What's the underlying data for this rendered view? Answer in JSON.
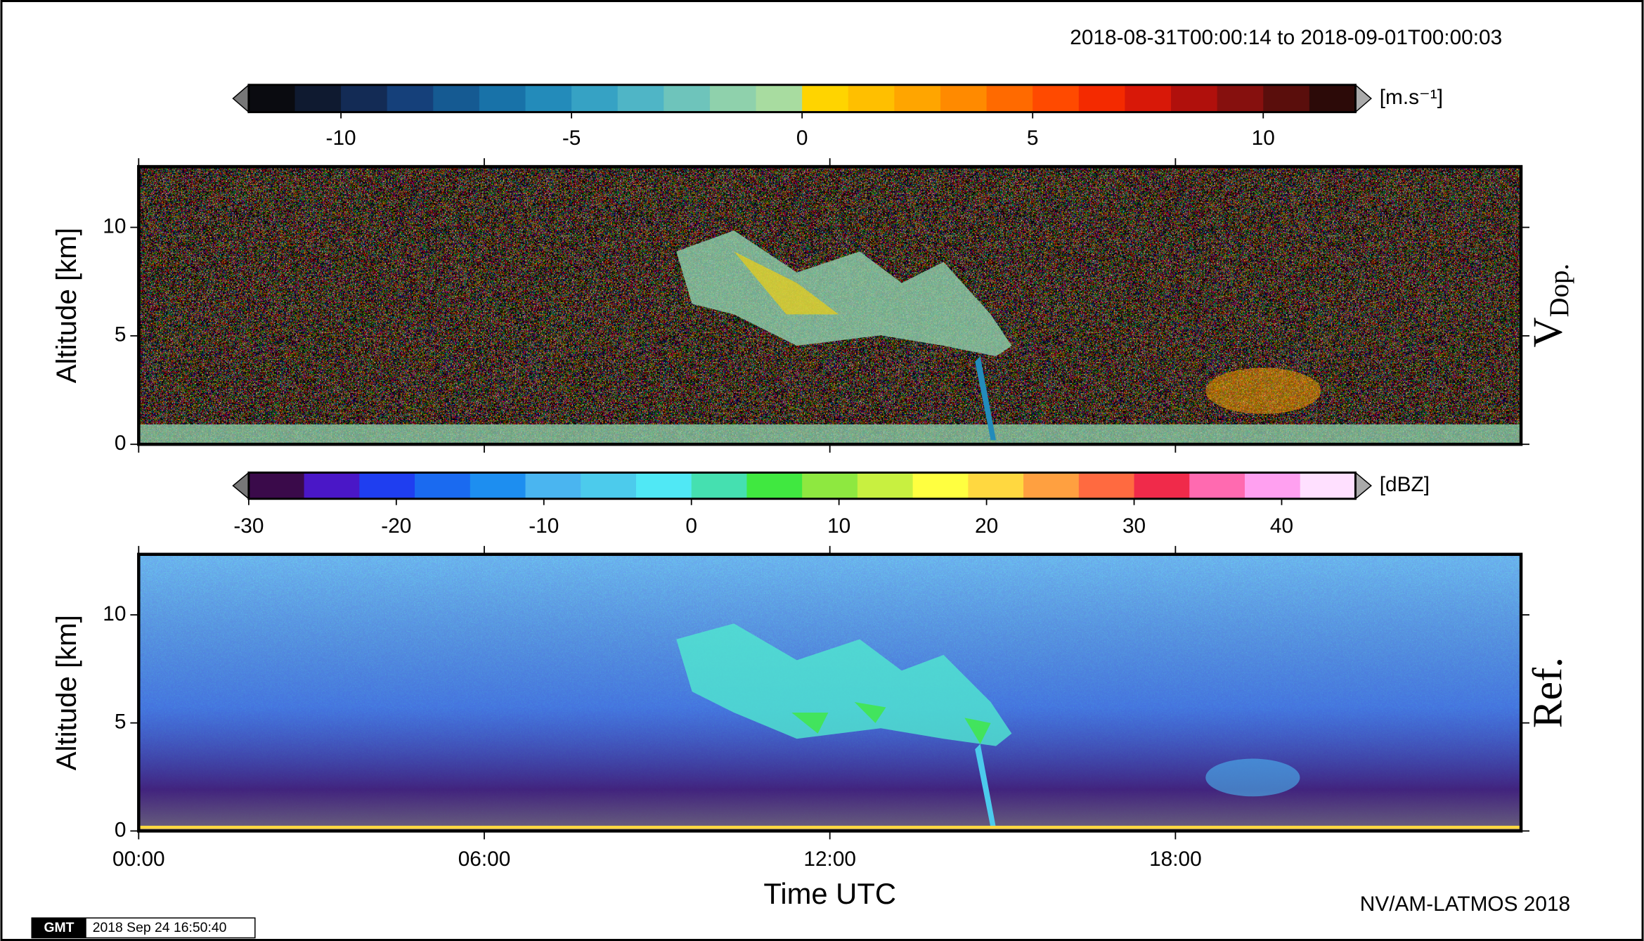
{
  "header": {
    "time_range": "2018-08-31T00:00:14 to 2018-09-01T00:00:03"
  },
  "chart_data": [
    {
      "type": "heatmap",
      "ylabel": "Altitude [km]",
      "side_label": "V",
      "side_label_sub": "Dop.",
      "ylim": [
        0,
        12.8
      ],
      "yticks": [
        0,
        5,
        10
      ],
      "xlim": [
        0,
        24
      ],
      "xticks": [
        {
          "value": 0,
          "label": "00:00"
        },
        {
          "value": 6,
          "label": "06:00"
        },
        {
          "value": 12,
          "label": "12:00"
        },
        {
          "value": 18,
          "label": "18:00"
        }
      ],
      "colorbar_label": "[m.s⁻¹]",
      "clim": [
        -12,
        12
      ],
      "cticks": [
        -10,
        -5,
        0,
        5,
        10
      ],
      "colors": [
        "#0a0b10",
        "#0f1a30",
        "#132b55",
        "#15407a",
        "#155a92",
        "#1872a8",
        "#238bba",
        "#36a2c4",
        "#4fb5c6",
        "#6ec4bb",
        "#8fd1ac",
        "#a8dca0",
        "#ffd400",
        "#ffbf00",
        "#ffa500",
        "#ff8a00",
        "#ff6a00",
        "#ff4a00",
        "#f42a00",
        "#d81808",
        "#b0100c",
        "#86100e",
        "#5a0e0c",
        "#2c0a08"
      ]
    },
    {
      "type": "heatmap",
      "ylabel": "Altitude [km]",
      "side_label": "Ref.",
      "xlabel": "Time UTC",
      "ylim": [
        0,
        12.8
      ],
      "yticks": [
        0,
        5,
        10
      ],
      "xlim": [
        0,
        24
      ],
      "xticks": [
        {
          "value": 0,
          "label": "00:00"
        },
        {
          "value": 6,
          "label": "06:00"
        },
        {
          "value": 12,
          "label": "12:00"
        },
        {
          "value": 18,
          "label": "18:00"
        }
      ],
      "colorbar_label": "[dBZ]",
      "clim": [
        -30,
        45
      ],
      "cticks": [
        -30,
        -20,
        -10,
        0,
        10,
        20,
        30,
        40
      ],
      "colors": [
        "#3a0a4a",
        "#4a17c7",
        "#1f3ef0",
        "#1a6af0",
        "#1d8ef0",
        "#4ab5f0",
        "#4ccbec",
        "#50e8f5",
        "#45e0b0",
        "#40e840",
        "#8ee840",
        "#c8f040",
        "#ffff40",
        "#ffd840",
        "#ffa040",
        "#ff6a40",
        "#f02a4a",
        "#ff6ab0",
        "#ffa0f0",
        "#ffe0ff"
      ]
    }
  ],
  "footer": {
    "credit": "NV/AM-LATMOS 2018",
    "logo": "GMT",
    "timestamp": "2018 Sep 24 16:50:40"
  }
}
